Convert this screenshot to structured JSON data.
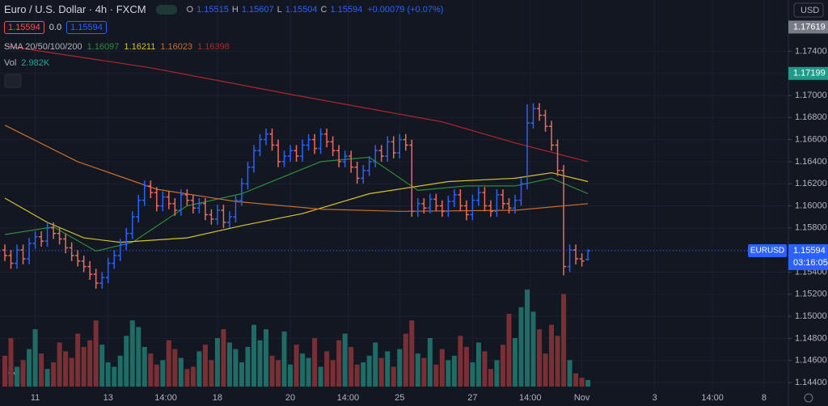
{
  "header": {
    "symbol": "Euro / U.S. Dollar · 4h · FXCM",
    "ohlc": [
      {
        "label": "O",
        "value": 1.15515
      },
      {
        "label": "H",
        "value": 1.15607
      },
      {
        "label": "L",
        "value": 1.15504
      },
      {
        "label": "C",
        "value": 1.15594
      }
    ],
    "change": "+0.00079 (+0.07%)",
    "bid": 1.15594,
    "spread": "0.0",
    "ask": 1.15594,
    "indicator": "SMA 20/50/100/200",
    "sma_values": [
      1.16097,
      1.16211,
      1.16023,
      1.16398
    ],
    "volume_title": "Vol",
    "volume_value": "2.982K",
    "currency": "USD",
    "tag_symbol": "EURUSD",
    "countdown": "03:16:05"
  },
  "chart_data": {
    "type": "ohlc",
    "up_color": "#2962ff",
    "down_color": "#ef6a5e",
    "volume_up_color": "#1f6b66",
    "volume_down_color": "#7a2f35",
    "xlim": [
      -0.8,
      129
    ],
    "ylim": [
      1.14312,
      1.17864
    ],
    "xticks": [
      {
        "value": 5,
        "label": "11"
      },
      {
        "value": 17,
        "label": "13"
      },
      {
        "value": 26.5,
        "label": "14:00"
      },
      {
        "value": 35,
        "label": "18"
      },
      {
        "value": 47,
        "label": "20"
      },
      {
        "value": 56.5,
        "label": "14:00"
      },
      {
        "value": 65,
        "label": "25"
      },
      {
        "value": 77,
        "label": "27"
      },
      {
        "value": 86.5,
        "label": "14:00"
      },
      {
        "value": 95,
        "label": "Nov"
      },
      {
        "value": 107,
        "label": "3"
      },
      {
        "value": 116.5,
        "label": "14:00"
      },
      {
        "value": 125,
        "label": "8"
      }
    ],
    "yticks": [
      {
        "value": 1.144,
        "label": "1.14400"
      },
      {
        "value": 1.146,
        "label": "1.14600"
      },
      {
        "value": 1.148,
        "label": "1.14800"
      },
      {
        "value": 1.15,
        "label": "1.15000"
      },
      {
        "value": 1.152,
        "label": "1.15200"
      },
      {
        "value": 1.154,
        "label": "1.15400"
      },
      {
        "value": 1.156,
        "label": "1.15600"
      },
      {
        "value": 1.158,
        "label": "1.15800"
      },
      {
        "value": 1.16,
        "label": "1.16000"
      },
      {
        "value": 1.162,
        "label": "1.16200"
      },
      {
        "value": 1.164,
        "label": "1.16400"
      },
      {
        "value": 1.166,
        "label": "1.16600"
      },
      {
        "value": 1.168,
        "label": "1.16800"
      },
      {
        "value": 1.17,
        "label": "1.17000"
      },
      {
        "value": 1.172,
        "label": "1.17200"
      },
      {
        "value": 1.174,
        "label": "1.17400"
      }
    ],
    "price_tags": [
      {
        "value": 1.17619,
        "color": "#787b86"
      },
      {
        "value": 1.17199,
        "color": "#1f9b8a"
      }
    ],
    "open": [
      1.156,
      1.1555,
      1.1548,
      1.156,
      1.1552,
      1.1566,
      1.1572,
      1.1568,
      1.158,
      1.1575,
      1.157,
      1.1562,
      1.1555,
      1.155,
      1.1545,
      1.1538,
      1.153,
      1.1535,
      1.1548,
      1.1555,
      1.1565,
      1.1575,
      1.159,
      1.1605,
      1.1618,
      1.1612,
      1.16,
      1.1608,
      1.1602,
      1.1596,
      1.161,
      1.1605,
      1.1598,
      1.1602,
      1.1592,
      1.1588,
      1.1596,
      1.1585,
      1.159,
      1.1605,
      1.162,
      1.1635,
      1.165,
      1.166,
      1.1665,
      1.1655,
      1.164,
      1.1645,
      1.165,
      1.1645,
      1.1655,
      1.166,
      1.1652,
      1.1665,
      1.1658,
      1.165,
      1.164,
      1.1645,
      1.1635,
      1.1625,
      1.1632,
      1.164,
      1.165,
      1.1645,
      1.1658,
      1.1648,
      1.166,
      1.1655,
      1.1595,
      1.1602,
      1.1598,
      1.1606,
      1.16,
      1.1595,
      1.1604,
      1.161,
      1.16,
      1.1592,
      1.1605,
      1.1612,
      1.16,
      1.1595,
      1.161,
      1.1602,
      1.1598,
      1.1605,
      1.162,
      1.1675,
      1.1688,
      1.1682,
      1.1672,
      1.1655,
      1.1632,
      1.1545,
      1.156,
      1.1552,
      1.15515
    ],
    "high": [
      1.1565,
      1.156,
      1.1565,
      1.1565,
      1.1571,
      1.1577,
      1.1577,
      1.1585,
      1.1585,
      1.158,
      1.1575,
      1.1567,
      1.156,
      1.1555,
      1.155,
      1.1543,
      1.154,
      1.1553,
      1.156,
      1.157,
      1.158,
      1.1595,
      1.161,
      1.1623,
      1.1623,
      1.1617,
      1.1613,
      1.1613,
      1.1607,
      1.1615,
      1.1615,
      1.161,
      1.1607,
      1.1607,
      1.1597,
      1.1601,
      1.1601,
      1.1595,
      1.161,
      1.1625,
      1.164,
      1.1655,
      1.1665,
      1.167,
      1.167,
      1.166,
      1.165,
      1.1655,
      1.1655,
      1.166,
      1.1665,
      1.1665,
      1.167,
      1.167,
      1.1663,
      1.1655,
      1.165,
      1.165,
      1.164,
      1.1637,
      1.1645,
      1.1655,
      1.1655,
      1.1663,
      1.1663,
      1.1665,
      1.1665,
      1.166,
      1.1607,
      1.1607,
      1.1611,
      1.1611,
      1.1605,
      1.1609,
      1.1615,
      1.1615,
      1.1605,
      1.161,
      1.1617,
      1.1617,
      1.1605,
      1.1615,
      1.1615,
      1.1607,
      1.161,
      1.1625,
      1.1692,
      1.1693,
      1.1693,
      1.1687,
      1.1677,
      1.166,
      1.1637,
      1.1565,
      1.1565,
      1.1557,
      1.15607
    ],
    "low": [
      1.155,
      1.1543,
      1.1543,
      1.1547,
      1.1547,
      1.1561,
      1.1563,
      1.1563,
      1.157,
      1.1565,
      1.1557,
      1.155,
      1.1545,
      1.154,
      1.1533,
      1.1525,
      1.1525,
      1.153,
      1.1543,
      1.155,
      1.156,
      1.157,
      1.1585,
      1.16,
      1.1607,
      1.1595,
      1.1595,
      1.1597,
      1.1591,
      1.1591,
      1.16,
      1.1593,
      1.1593,
      1.1587,
      1.1583,
      1.1583,
      1.158,
      1.158,
      1.1585,
      1.16,
      1.1615,
      1.163,
      1.1645,
      1.1655,
      1.165,
      1.1635,
      1.1635,
      1.164,
      1.164,
      1.164,
      1.165,
      1.1647,
      1.1647,
      1.1653,
      1.1645,
      1.1635,
      1.1635,
      1.163,
      1.162,
      1.162,
      1.1627,
      1.1635,
      1.164,
      1.164,
      1.1643,
      1.1643,
      1.165,
      1.159,
      1.159,
      1.1593,
      1.1593,
      1.1595,
      1.159,
      1.159,
      1.1599,
      1.1595,
      1.1587,
      1.1587,
      1.16,
      1.1595,
      1.159,
      1.159,
      1.1597,
      1.1593,
      1.1593,
      1.16,
      1.1615,
      1.167,
      1.1677,
      1.1667,
      1.165,
      1.1627,
      1.1537,
      1.154,
      1.1547,
      1.1545,
      1.15504
    ],
    "close": [
      1.1555,
      1.1548,
      1.156,
      1.1552,
      1.1566,
      1.1572,
      1.1568,
      1.158,
      1.1575,
      1.157,
      1.1562,
      1.1555,
      1.155,
      1.1545,
      1.1538,
      1.153,
      1.1535,
      1.1548,
      1.1555,
      1.1565,
      1.1575,
      1.159,
      1.1605,
      1.1618,
      1.1612,
      1.16,
      1.1608,
      1.1602,
      1.1596,
      1.161,
      1.1605,
      1.1598,
      1.1602,
      1.1592,
      1.1588,
      1.1596,
      1.1585,
      1.159,
      1.1605,
      1.162,
      1.1635,
      1.165,
      1.166,
      1.1665,
      1.1655,
      1.164,
      1.1645,
      1.165,
      1.1645,
      1.1655,
      1.166,
      1.1652,
      1.1665,
      1.1658,
      1.165,
      1.164,
      1.1645,
      1.1635,
      1.1625,
      1.1632,
      1.164,
      1.165,
      1.1645,
      1.1658,
      1.1648,
      1.166,
      1.1655,
      1.1595,
      1.1602,
      1.1598,
      1.1606,
      1.16,
      1.1595,
      1.1604,
      1.161,
      1.16,
      1.1592,
      1.1605,
      1.1612,
      1.16,
      1.1595,
      1.161,
      1.1602,
      1.1598,
      1.1605,
      1.162,
      1.1675,
      1.1688,
      1.1682,
      1.1672,
      1.1655,
      1.1632,
      1.1545,
      1.156,
      1.1552,
      1.155,
      1.15594
    ],
    "volume": [
      14000,
      22000,
      9000,
      12000,
      17000,
      26000,
      15000,
      8000,
      11000,
      20000,
      16000,
      13000,
      24000,
      18000,
      21000,
      30000,
      19000,
      11000,
      9000,
      14000,
      23000,
      30000,
      27000,
      18000,
      15000,
      10000,
      12000,
      21000,
      17000,
      13000,
      8000,
      9000,
      16000,
      19000,
      12000,
      22000,
      26000,
      20000,
      17000,
      11000,
      18000,
      28000,
      21000,
      26000,
      14000,
      12000,
      25000,
      10000,
      19000,
      15000,
      13000,
      22000,
      9000,
      16000,
      12000,
      21000,
      24000,
      18000,
      10000,
      11000,
      14000,
      20000,
      13000,
      16000,
      9000,
      17000,
      24000,
      30000,
      15000,
      13000,
      22000,
      10000,
      17000,
      12000,
      14000,
      23000,
      18000,
      11000,
      20000,
      16000,
      8000,
      12000,
      19000,
      33000,
      22000,
      36000,
      44000,
      34000,
      26000,
      15000,
      28000,
      23000,
      42000,
      12000,
      6000,
      4000,
      2982
    ],
    "series": [
      {
        "color": "#2e8b3e",
        "x": [
          0,
          8,
          15,
          21,
          30,
          39,
          52,
          60,
          68,
          76,
          84,
          90,
          96
        ],
        "values": [
          1.1574,
          1.1581,
          1.1559,
          1.1567,
          1.16,
          1.1611,
          1.164,
          1.1644,
          1.1614,
          1.1618,
          1.1618,
          1.1625,
          1.1611
        ]
      },
      {
        "color": "#d4c22a",
        "x": [
          0,
          7,
          13,
          19,
          30,
          39,
          49,
          60,
          73,
          84,
          90,
          96
        ],
        "values": [
          1.1607,
          1.1585,
          1.1571,
          1.1567,
          1.1571,
          1.1582,
          1.1593,
          1.1611,
          1.1622,
          1.1625,
          1.163,
          1.1622
        ]
      },
      {
        "color": "#c96e2a",
        "x": [
          0,
          12,
          25,
          38,
          52,
          65,
          84,
          96
        ],
        "values": [
          1.1673,
          1.164,
          1.1615,
          1.1604,
          1.1597,
          1.1595,
          1.1596,
          1.1602
        ]
      },
      {
        "color": "#b0262d",
        "x": [
          0,
          24,
          48,
          72,
          84,
          96
        ],
        "values": [
          1.1745,
          1.1725,
          1.17,
          1.1676,
          1.1657,
          1.164
        ]
      }
    ]
  }
}
